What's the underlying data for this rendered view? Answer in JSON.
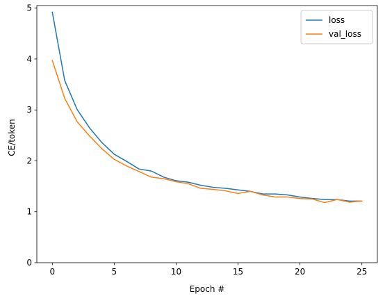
{
  "chart_data": {
    "type": "line",
    "title": "",
    "xlabel": "Epoch #",
    "ylabel": "CE/token",
    "xlim": [
      -1.25,
      26.25
    ],
    "ylim": [
      0,
      5.05
    ],
    "xticks": [
      0,
      5,
      10,
      15,
      20,
      25
    ],
    "yticks": [
      0,
      1,
      2,
      3,
      4,
      5
    ],
    "x": [
      0,
      1,
      2,
      3,
      4,
      5,
      6,
      7,
      8,
      9,
      10,
      11,
      12,
      13,
      14,
      15,
      16,
      17,
      18,
      19,
      20,
      21,
      22,
      23,
      24,
      25
    ],
    "series": [
      {
        "name": "loss",
        "color": "#1f77b4",
        "values": [
          4.92,
          3.58,
          3.01,
          2.65,
          2.36,
          2.13,
          1.99,
          1.84,
          1.8,
          1.68,
          1.61,
          1.58,
          1.52,
          1.48,
          1.46,
          1.43,
          1.4,
          1.35,
          1.35,
          1.33,
          1.29,
          1.26,
          1.24,
          1.24,
          1.21,
          1.21
        ]
      },
      {
        "name": "val_loss",
        "color": "#ff7f0e",
        "values": [
          3.97,
          3.23,
          2.77,
          2.49,
          2.24,
          2.03,
          1.9,
          1.79,
          1.68,
          1.65,
          1.59,
          1.55,
          1.46,
          1.44,
          1.41,
          1.36,
          1.4,
          1.33,
          1.29,
          1.29,
          1.26,
          1.25,
          1.18,
          1.24,
          1.19,
          1.21
        ]
      }
    ],
    "grid": false,
    "legend_position": "top-right"
  }
}
